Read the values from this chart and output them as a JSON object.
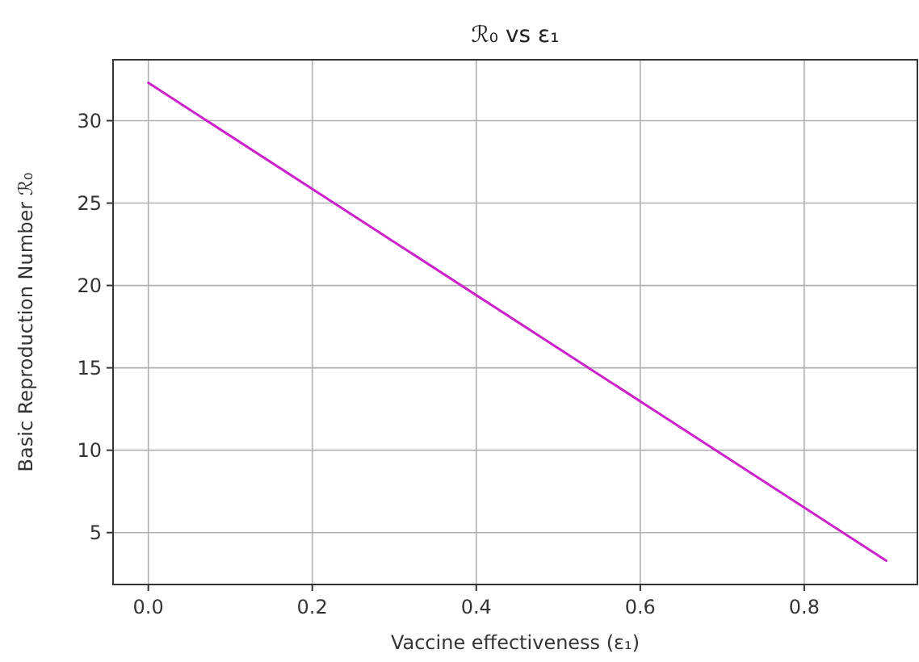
{
  "chart_data": {
    "type": "line",
    "title": "ℛ₀ vs ε₁",
    "xlabel": "Vaccine effectiveness (ε₁)",
    "ylabel": "Basic Reproduction Number ℛ₀",
    "x": [
      0,
      0.9
    ],
    "series": [
      {
        "color": "#cc22cc",
        "values": [
          32.3,
          3.3
        ]
      }
    ],
    "xlim": [
      -0.043,
      0.938
    ],
    "xticks": [
      {
        "value": 0,
        "label": "0.0"
      },
      {
        "value": 0.2,
        "label": "0.2"
      },
      {
        "value": 0.4,
        "label": "0.4"
      },
      {
        "value": 0.6,
        "label": "0.6"
      },
      {
        "value": 0.8,
        "label": "0.8"
      }
    ],
    "ylim": [
      1.85,
      33.7
    ],
    "yticks": [
      5,
      10,
      15,
      20,
      25,
      30
    ],
    "grid": true,
    "marker": "none",
    "line_style": "solid"
  }
}
